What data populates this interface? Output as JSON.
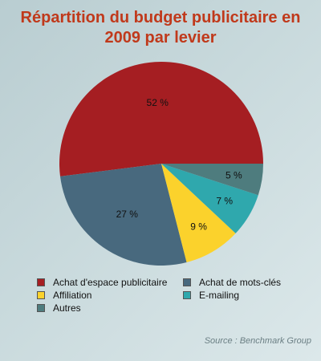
{
  "chart_data": {
    "type": "pie",
    "title_lines": [
      "Répartition du budget publicitaire en",
      "2009 par levier"
    ],
    "slices": [
      {
        "label": "Achat d'espace publicitaire",
        "value": 52,
        "value_label": "52 %",
        "color": "#a51e22"
      },
      {
        "label": "Achat de mots-clés",
        "value": 27,
        "value_label": "27 %",
        "color": "#48697e"
      },
      {
        "label": "Affiliation",
        "value": 9,
        "value_label": "9 %",
        "color": "#fbd22c"
      },
      {
        "label": "E-mailing",
        "value": 7,
        "value_label": "7 %",
        "color": "#2fa8ad"
      },
      {
        "label": "Autres",
        "value": 5,
        "value_label": "5 %",
        "color": "#4e7c7e"
      }
    ],
    "legend_placement": "bottom"
  },
  "legend": {
    "items": [
      {
        "label": "Achat d'espace publicitaire",
        "color": "#a51e22"
      },
      {
        "label": "Achat de mots-clés",
        "color": "#48697e"
      },
      {
        "label": "Affiliation",
        "color": "#fbd22c"
      },
      {
        "label": "E-mailing",
        "color": "#2fa8ad"
      },
      {
        "label": "Autres",
        "color": "#4e7c7e"
      }
    ]
  },
  "source": "Source : Benchmark Group"
}
